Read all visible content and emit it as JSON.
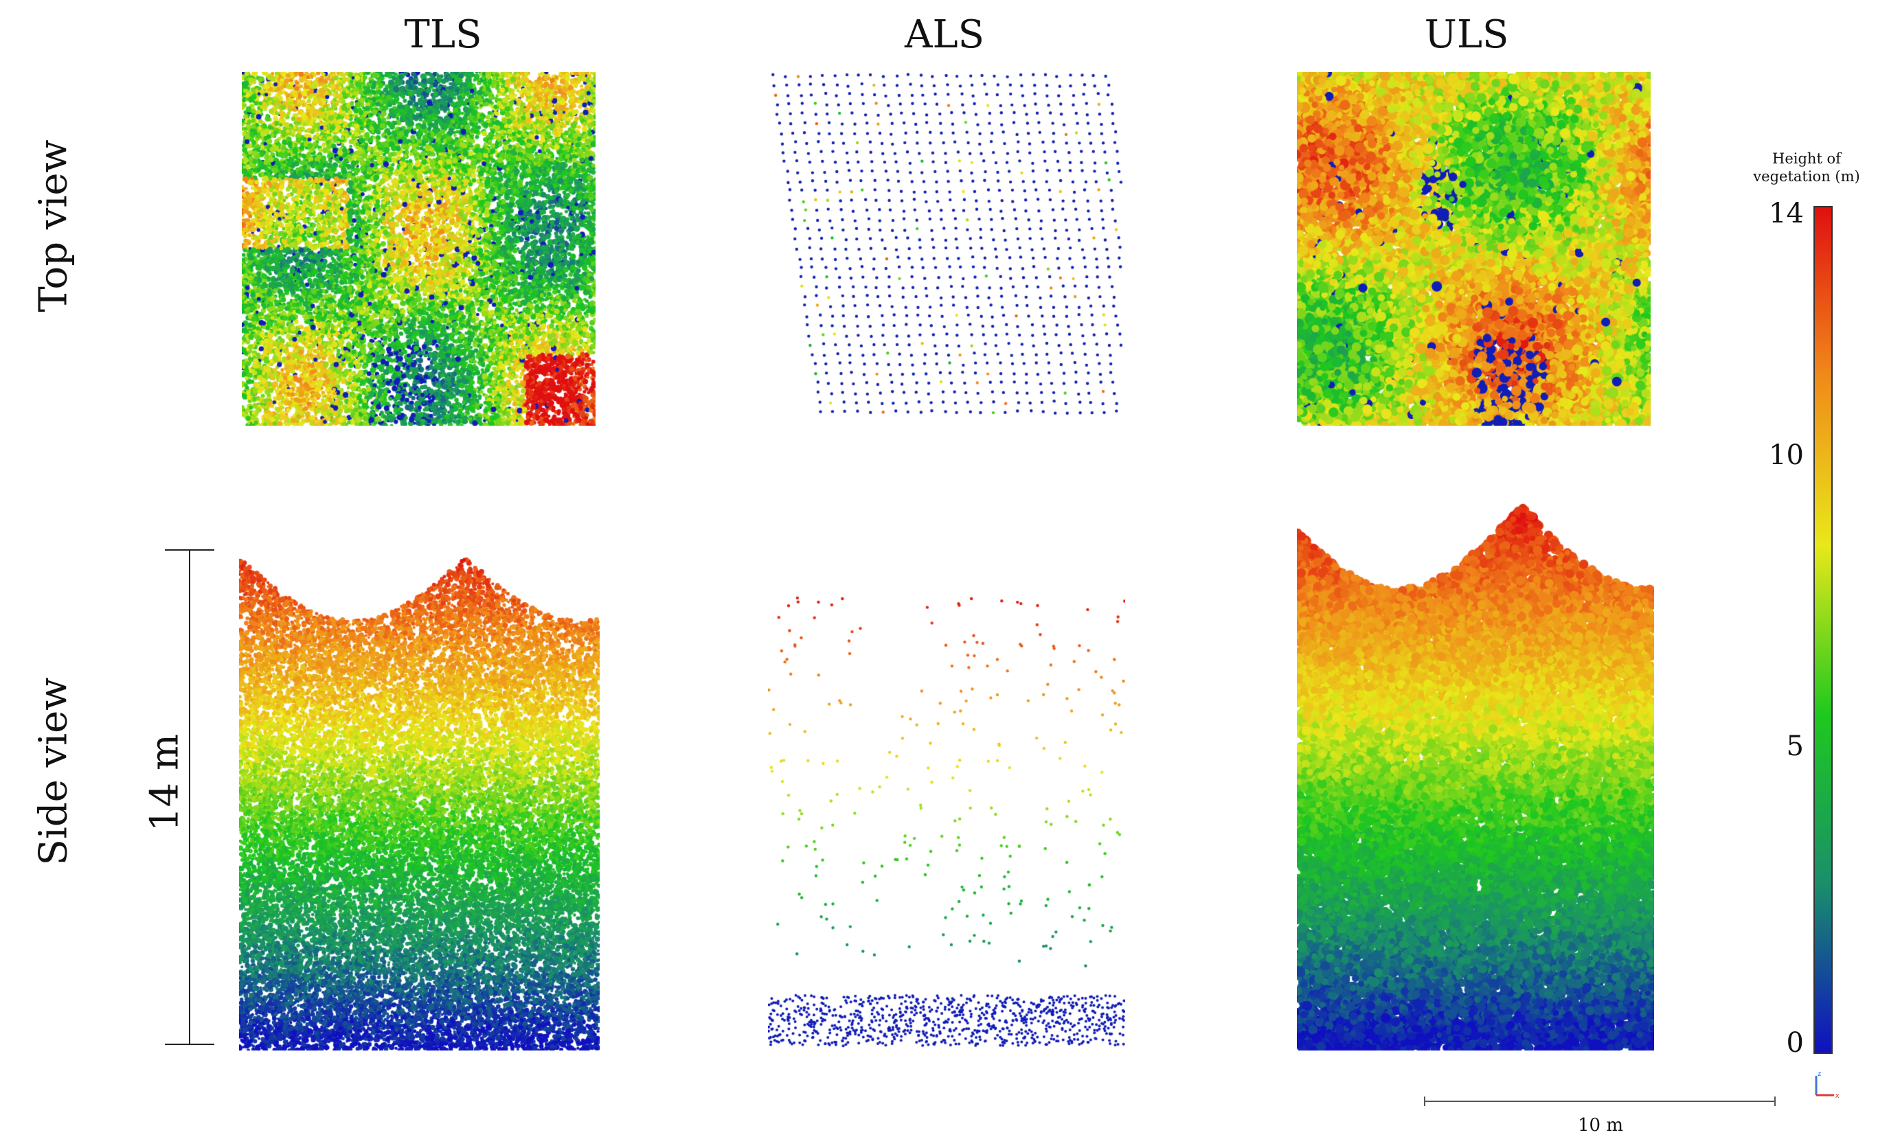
{
  "columns": [
    "TLS",
    "ALS",
    "ULS"
  ],
  "rows": [
    "Top view",
    "Side view"
  ],
  "height_scale_label": "14 m",
  "legend": {
    "title_line1": "Height of",
    "title_line2": "vegetation (m)",
    "ticks": [
      "14",
      "10",
      "5",
      "0"
    ],
    "tick_values": [
      14,
      10,
      5,
      0
    ],
    "max": 14,
    "colors": [
      "#1010c0",
      "#1a8f6a",
      "#1fc81f",
      "#e8e81a",
      "#f08a1a",
      "#e01010"
    ]
  },
  "scalebar_label": "10 m",
  "axes_icon": {
    "z": "z",
    "x": "x"
  }
}
